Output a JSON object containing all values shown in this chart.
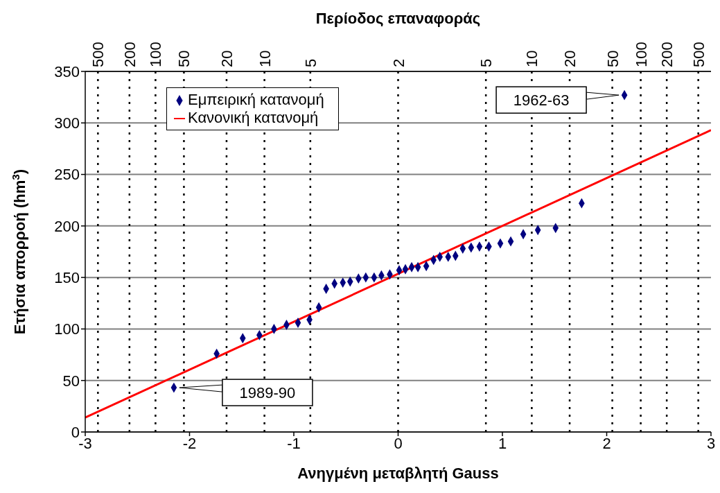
{
  "chart_data": {
    "type": "scatter",
    "xlabel": "Ανηγμένη μεταβλητή Gauss",
    "ylabel": "Ετήσια απορροή (hm$^{3}$)",
    "x2label": "Περίοδος επαναφοράς",
    "xlim": [
      -3,
      3
    ],
    "xticks": [
      -3,
      -2,
      -1,
      0,
      1,
      2,
      3
    ],
    "ylim": [
      0,
      350
    ],
    "yticks": [
      0,
      50,
      100,
      150,
      200,
      250,
      300,
      350
    ],
    "grid": "y",
    "legend": "top left",
    "ref_lines": [
      {
        "axis": "x",
        "value": -2.8782,
        "color": "#000000",
        "line_style": "dotted"
      },
      {
        "axis": "x",
        "value": -2.5758,
        "color": "#000000",
        "line_style": "dotted"
      },
      {
        "axis": "x",
        "value": -2.3263,
        "color": "#000000",
        "line_style": "dotted"
      },
      {
        "axis": "x",
        "value": -2.0537,
        "color": "#000000",
        "line_style": "dotted"
      },
      {
        "axis": "x",
        "value": -1.6449,
        "color": "#000000",
        "line_style": "dotted"
      },
      {
        "axis": "x",
        "value": -1.2816,
        "color": "#000000",
        "line_style": "dotted"
      },
      {
        "axis": "x",
        "value": -0.8416,
        "color": "#000000",
        "line_style": "dotted"
      },
      {
        "axis": "x",
        "value": 0,
        "color": "#000000",
        "line_style": "dotted"
      },
      {
        "axis": "x",
        "value": 0.8416,
        "color": "#000000",
        "line_style": "dotted"
      },
      {
        "axis": "x",
        "value": 1.2816,
        "color": "#000000",
        "line_style": "dotted"
      },
      {
        "axis": "x",
        "value": 1.6449,
        "color": "#000000",
        "line_style": "dotted"
      },
      {
        "axis": "x",
        "value": 2.0537,
        "color": "#000000",
        "line_style": "dotted"
      },
      {
        "axis": "x",
        "value": 2.3263,
        "color": "#000000",
        "line_style": "dotted"
      },
      {
        "axis": "x",
        "value": 2.5758,
        "color": "#000000",
        "line_style": "dotted"
      },
      {
        "axis": "x",
        "value": 2.8782,
        "color": "#000000",
        "line_style": "dotted"
      }
    ],
    "series": [
      {
        "name": "Εμπειρική κατανομή",
        "color": "#000080",
        "marker": "diamond",
        "x": [
          -2.15,
          -1.74,
          -1.49,
          -1.33,
          -1.19,
          -1.07,
          -0.96,
          -0.85,
          -0.76,
          -0.69,
          -0.61,
          -0.53,
          -0.46,
          -0.38,
          -0.31,
          -0.23,
          -0.16,
          -0.08,
          0.01,
          0.07,
          0.13,
          0.19,
          0.27,
          0.34,
          0.4,
          0.48,
          0.55,
          0.62,
          0.7,
          0.78,
          0.87,
          0.98,
          1.08,
          1.2,
          1.34,
          1.51,
          1.76,
          2.17
        ],
        "values": [
          43,
          76,
          91,
          94,
          100,
          104,
          106,
          109,
          121,
          139,
          144,
          145,
          146,
          149,
          150,
          150,
          152,
          153,
          157,
          158,
          160,
          160,
          161,
          167,
          170,
          170,
          171,
          178,
          179,
          180,
          180,
          183,
          185,
          192,
          196,
          198,
          222,
          327
        ]
      },
      {
        "name": "Κανονική κατανομή",
        "type": "line",
        "color": "#ff0000",
        "line_style": "solid",
        "x": [
          -3,
          3
        ],
        "values": [
          14,
          293
        ]
      }
    ],
    "annotations": [
      {
        "text": "1962-63",
        "x": 2.17,
        "y": 327
      },
      {
        "text": "1989-90",
        "x": -2.15,
        "y": 43
      },
      "500",
      "200",
      "100",
      "50",
      "20",
      "10",
      "5",
      "2",
      "5",
      "10",
      "20",
      "50",
      "100",
      "200",
      "500"
    ]
  }
}
